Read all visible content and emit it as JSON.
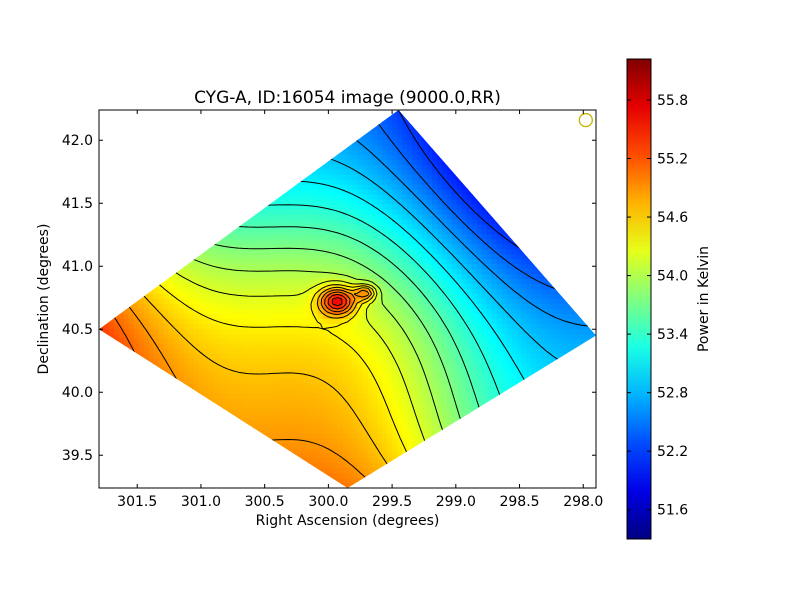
{
  "chart_data": {
    "type": "heatmap",
    "title": "CYG-A, ID:16054 image (9000.0,RR)",
    "xlabel": "Right Ascension (degrees)",
    "ylabel": "Declination (degrees)",
    "xlim": [
      301.8,
      297.9
    ],
    "ylim": [
      39.24,
      42.24
    ],
    "x_ticks": [
      301.5,
      301.0,
      300.5,
      300.0,
      299.5,
      299.0,
      298.5,
      298.0
    ],
    "x_tick_labels": [
      "301.5",
      "301.0",
      "300.5",
      "300.0",
      "299.5",
      "299.0",
      "298.5",
      "298.0"
    ],
    "y_ticks": [
      39.5,
      40.0,
      40.5,
      41.0,
      41.5,
      42.0
    ],
    "y_tick_labels": [
      "39.5",
      "40.0",
      "40.5",
      "41.0",
      "41.5",
      "42.0"
    ],
    "colorbar": {
      "label": "Power in Kelvin",
      "range": [
        51.3,
        56.22
      ],
      "ticks": [
        51.6,
        52.2,
        52.8,
        53.4,
        54.0,
        54.6,
        55.2,
        55.8
      ],
      "tick_labels": [
        "51.6",
        "52.2",
        "52.8",
        "53.4",
        "54.0",
        "54.6",
        "55.2",
        "55.8"
      ],
      "colormap": "jet"
    },
    "footprint": {
      "shape": "diamond",
      "corners": [
        {
          "ra": 299.45,
          "dec": 42.24
        },
        {
          "ra": 297.9,
          "dec": 40.45
        },
        {
          "ra": 299.85,
          "dec": 39.24
        },
        {
          "ra": 301.8,
          "dec": 40.5
        }
      ]
    },
    "field": {
      "gradient_min": 51.3,
      "gradient_max": 56.22,
      "source": {
        "ra": 299.93,
        "dec": 40.72,
        "peak": 55.7
      },
      "contour_count": 21
    },
    "beam_marker": {
      "ra": 297.98,
      "dec": 42.16,
      "color": "#c8b400"
    }
  }
}
